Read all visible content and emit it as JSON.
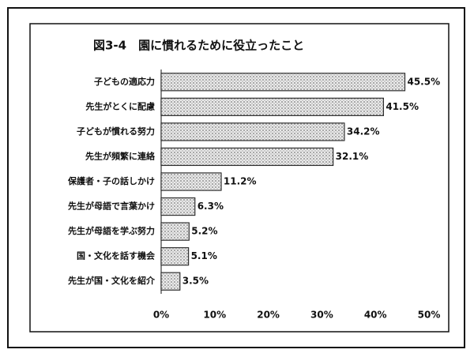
{
  "chart_data": {
    "type": "bar",
    "orientation": "horizontal",
    "title": "図3-4　園に慣れるために役立ったこと",
    "categories": [
      "子どもの適応力",
      "先生がとくに配慮",
      "子どもが慣れる努力",
      "先生が頻繁に連絡",
      "保護者・子の話しかけ",
      "先生が母語で言葉かけ",
      "先生が母語を学ぶ努力",
      "国・文化を話す機会",
      "先生が国・文化を紹介"
    ],
    "values": [
      45.5,
      41.5,
      34.2,
      32.1,
      11.2,
      6.3,
      5.2,
      5.1,
      3.5
    ],
    "value_labels": [
      "45.5%",
      "41.5%",
      "34.2%",
      "32.1%",
      "11.2%",
      "6.3%",
      "5.2%",
      "5.1%",
      "3.5%"
    ],
    "color": "#c4c4c4",
    "xlim": [
      0,
      50
    ],
    "xticks": [
      {
        "value": 0,
        "label": "0%"
      },
      {
        "value": 10,
        "label": "10%"
      },
      {
        "value": 20,
        "label": "20%"
      },
      {
        "value": 30,
        "label": "30%"
      },
      {
        "value": 40,
        "label": "40%"
      },
      {
        "value": 50,
        "label": "50%"
      }
    ]
  }
}
